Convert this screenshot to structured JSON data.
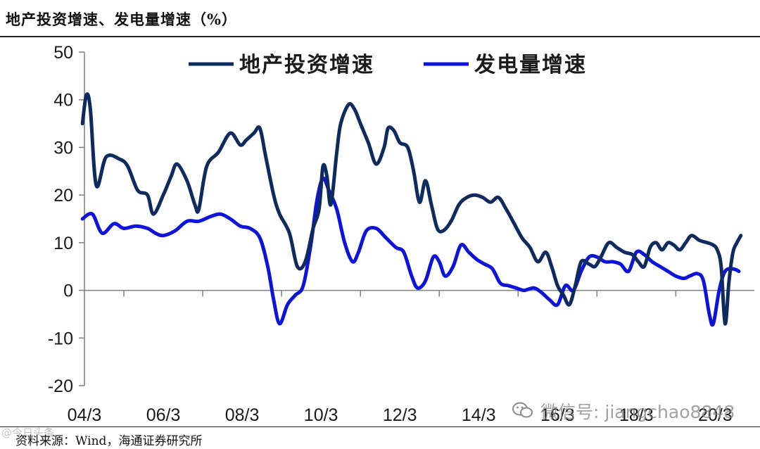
{
  "title": "地产投资增速、发电量增速（%）",
  "source": "资料来源：Wind，海通证券研究所",
  "watermark": "微信号: jiangchao8848",
  "watermark_left": "@今日头条",
  "chart_data": {
    "type": "line",
    "ylim": [
      -20,
      50
    ],
    "yticks": [
      50,
      40,
      30,
      20,
      10,
      0,
      -10,
      -20
    ],
    "xlim": [
      2004.0,
      2020.6
    ],
    "xticks": [
      {
        "x": 2004.0,
        "label": "04/3"
      },
      {
        "x": 2006.0,
        "label": "06/3"
      },
      {
        "x": 2008.0,
        "label": "08/3"
      },
      {
        "x": 2010.0,
        "label": "10/3"
      },
      {
        "x": 2012.0,
        "label": "12/3"
      },
      {
        "x": 2014.0,
        "label": "14/3"
      },
      {
        "x": 2016.0,
        "label": "16/3"
      },
      {
        "x": 2018.0,
        "label": "18/3"
      },
      {
        "x": 2020.0,
        "label": "20/3"
      }
    ],
    "legend_position": "top",
    "series": [
      {
        "name": "地产投资增速",
        "color": "#0f2a5e",
        "points": [
          [
            2003.95,
            35
          ],
          [
            2004.05,
            41
          ],
          [
            2004.15,
            38
          ],
          [
            2004.3,
            22
          ],
          [
            2004.55,
            28
          ],
          [
            2004.9,
            27.5
          ],
          [
            2005.1,
            26
          ],
          [
            2005.35,
            21
          ],
          [
            2005.6,
            20
          ],
          [
            2005.75,
            16
          ],
          [
            2006.0,
            20
          ],
          [
            2006.2,
            24
          ],
          [
            2006.35,
            26.5
          ],
          [
            2006.6,
            23
          ],
          [
            2006.8,
            18
          ],
          [
            2006.9,
            17
          ],
          [
            2007.1,
            26
          ],
          [
            2007.4,
            29
          ],
          [
            2007.7,
            33
          ],
          [
            2007.95,
            30.5
          ],
          [
            2008.1,
            31.5
          ],
          [
            2008.3,
            33
          ],
          [
            2008.45,
            34
          ],
          [
            2008.6,
            28
          ],
          [
            2008.8,
            20
          ],
          [
            2008.95,
            16
          ],
          [
            2009.2,
            12
          ],
          [
            2009.4,
            5
          ],
          [
            2009.6,
            6
          ],
          [
            2009.8,
            13
          ],
          [
            2009.95,
            17
          ],
          [
            2010.05,
            26
          ],
          [
            2010.15,
            24
          ],
          [
            2010.25,
            18
          ],
          [
            2010.4,
            29
          ],
          [
            2010.5,
            35
          ],
          [
            2010.7,
            39
          ],
          [
            2010.85,
            38
          ],
          [
            2011.0,
            35
          ],
          [
            2011.2,
            31
          ],
          [
            2011.4,
            26.5
          ],
          [
            2011.6,
            30
          ],
          [
            2011.7,
            34
          ],
          [
            2011.85,
            33.5
          ],
          [
            2012.0,
            31
          ],
          [
            2012.2,
            30
          ],
          [
            2012.35,
            25
          ],
          [
            2012.5,
            18.5
          ],
          [
            2012.65,
            23
          ],
          [
            2012.8,
            18
          ],
          [
            2012.95,
            13
          ],
          [
            2013.1,
            12.5
          ],
          [
            2013.3,
            14.5
          ],
          [
            2013.5,
            18
          ],
          [
            2013.7,
            19.5
          ],
          [
            2013.9,
            20
          ],
          [
            2014.1,
            19.5
          ],
          [
            2014.3,
            18.5
          ],
          [
            2014.5,
            19.5
          ],
          [
            2014.7,
            17
          ],
          [
            2014.9,
            14
          ],
          [
            2015.1,
            11
          ],
          [
            2015.3,
            9
          ],
          [
            2015.5,
            6
          ],
          [
            2015.7,
            8
          ],
          [
            2015.85,
            5
          ],
          [
            2016.0,
            1
          ],
          [
            2016.15,
            -1
          ],
          [
            2016.3,
            -3
          ],
          [
            2016.45,
            1
          ],
          [
            2016.6,
            6
          ],
          [
            2016.8,
            5.5
          ],
          [
            2016.95,
            5
          ],
          [
            2017.1,
            7
          ],
          [
            2017.3,
            10
          ],
          [
            2017.5,
            9
          ],
          [
            2017.7,
            8
          ],
          [
            2017.9,
            7.5
          ],
          [
            2018.05,
            6
          ],
          [
            2018.2,
            5
          ],
          [
            2018.35,
            9
          ],
          [
            2018.5,
            10
          ],
          [
            2018.65,
            8.5
          ],
          [
            2018.8,
            10
          ],
          [
            2018.95,
            9.5
          ],
          [
            2019.1,
            8.5
          ],
          [
            2019.25,
            10
          ],
          [
            2019.4,
            11.5
          ],
          [
            2019.6,
            10.5
          ],
          [
            2019.8,
            10
          ],
          [
            2019.95,
            9.5
          ],
          [
            2020.05,
            8.5
          ],
          [
            2020.15,
            5
          ],
          [
            2020.25,
            -7
          ],
          [
            2020.35,
            2
          ],
          [
            2020.45,
            8
          ],
          [
            2020.55,
            10
          ],
          [
            2020.65,
            11.5
          ]
        ]
      },
      {
        "name": "发电量增速",
        "color": "#0d13d8",
        "points": [
          [
            2003.95,
            15
          ],
          [
            2004.2,
            16
          ],
          [
            2004.45,
            12
          ],
          [
            2004.75,
            14
          ],
          [
            2005.0,
            13
          ],
          [
            2005.3,
            13.5
          ],
          [
            2005.6,
            13
          ],
          [
            2005.8,
            12
          ],
          [
            2006.0,
            11.5
          ],
          [
            2006.3,
            12.5
          ],
          [
            2006.6,
            14.5
          ],
          [
            2006.9,
            14.5
          ],
          [
            2007.2,
            15.5
          ],
          [
            2007.45,
            16
          ],
          [
            2007.7,
            15
          ],
          [
            2007.95,
            13.5
          ],
          [
            2008.2,
            13
          ],
          [
            2008.45,
            11
          ],
          [
            2008.65,
            5
          ],
          [
            2008.8,
            -2
          ],
          [
            2008.95,
            -7
          ],
          [
            2009.15,
            -3
          ],
          [
            2009.35,
            -1
          ],
          [
            2009.55,
            1
          ],
          [
            2009.75,
            10
          ],
          [
            2009.9,
            19
          ],
          [
            2010.05,
            23.5
          ],
          [
            2010.2,
            21
          ],
          [
            2010.4,
            17
          ],
          [
            2010.6,
            10
          ],
          [
            2010.8,
            6
          ],
          [
            2010.95,
            8
          ],
          [
            2011.15,
            12.5
          ],
          [
            2011.4,
            13
          ],
          [
            2011.65,
            11
          ],
          [
            2011.9,
            9
          ],
          [
            2012.1,
            8
          ],
          [
            2012.3,
            3
          ],
          [
            2012.45,
            0.5
          ],
          [
            2012.65,
            2
          ],
          [
            2012.85,
            7
          ],
          [
            2013.0,
            6
          ],
          [
            2013.15,
            3
          ],
          [
            2013.35,
            5
          ],
          [
            2013.55,
            9.5
          ],
          [
            2013.75,
            8
          ],
          [
            2013.95,
            6.5
          ],
          [
            2014.15,
            5.5
          ],
          [
            2014.35,
            4.5
          ],
          [
            2014.55,
            1.5
          ],
          [
            2014.75,
            1
          ],
          [
            2014.95,
            0.5
          ],
          [
            2015.15,
            0
          ],
          [
            2015.4,
            0.5
          ],
          [
            2015.6,
            -0.5
          ],
          [
            2015.8,
            -2
          ],
          [
            2016.0,
            -3
          ],
          [
            2016.2,
            1
          ],
          [
            2016.4,
            0
          ],
          [
            2016.6,
            4
          ],
          [
            2016.8,
            7
          ],
          [
            2017.0,
            7
          ],
          [
            2017.2,
            6
          ],
          [
            2017.4,
            6
          ],
          [
            2017.6,
            5.5
          ],
          [
            2017.8,
            4
          ],
          [
            2018.0,
            8
          ],
          [
            2018.2,
            7.5
          ],
          [
            2018.4,
            6
          ],
          [
            2018.6,
            5
          ],
          [
            2018.8,
            4
          ],
          [
            2019.0,
            3
          ],
          [
            2019.2,
            2.5
          ],
          [
            2019.35,
            3
          ],
          [
            2019.55,
            3.5
          ],
          [
            2019.7,
            2
          ],
          [
            2019.85,
            -5
          ],
          [
            2019.95,
            -7
          ],
          [
            2020.1,
            0
          ],
          [
            2020.25,
            4
          ],
          [
            2020.45,
            4.5
          ],
          [
            2020.6,
            4
          ]
        ]
      }
    ]
  }
}
